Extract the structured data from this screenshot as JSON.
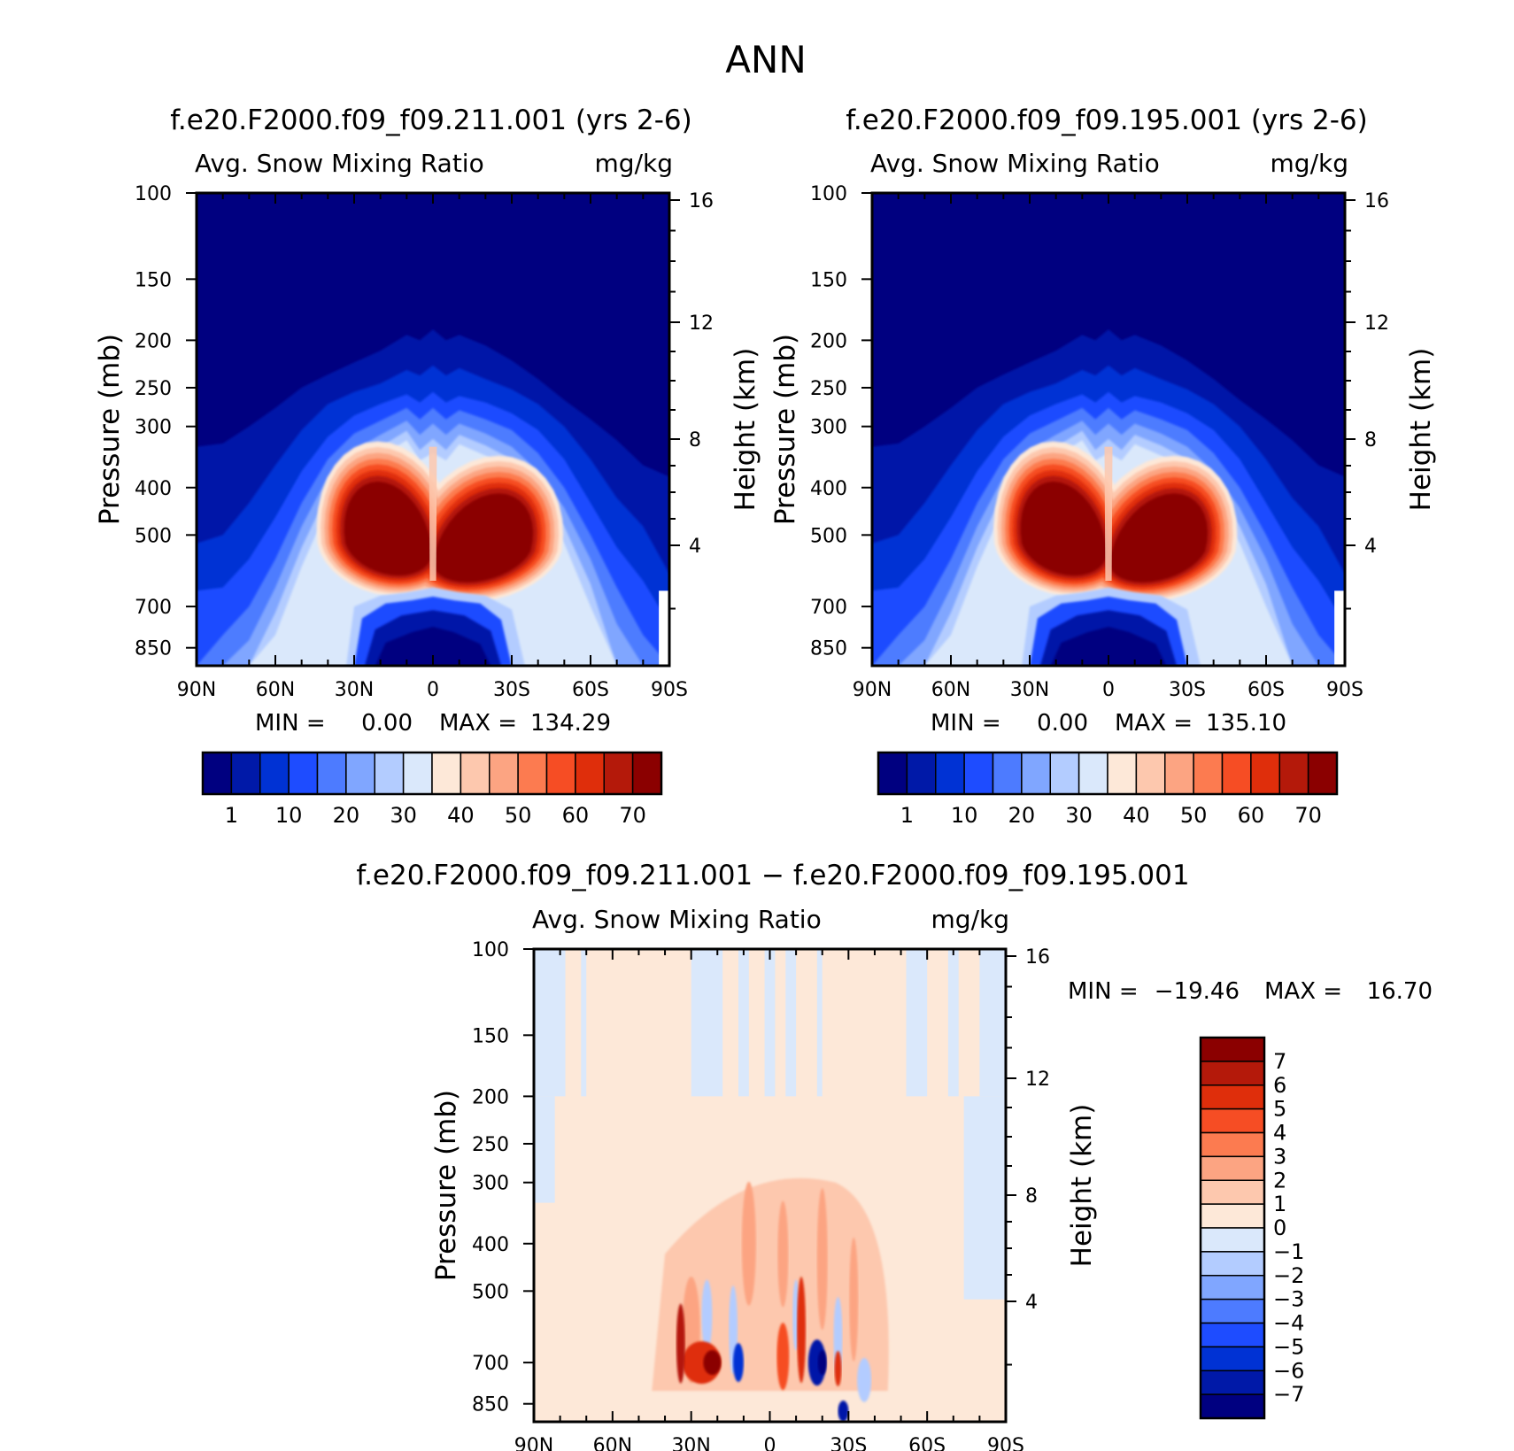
{
  "figure": {
    "title": "ANN",
    "colors": {
      "abs_levels": [
        "#000080",
        "#0019a8",
        "#0032d4",
        "#1e4cff",
        "#4d7bff",
        "#80a6ff",
        "#b3ccff",
        "#dae8fb",
        "#fde8d8",
        "#fdc8ae",
        "#fca482",
        "#fc7b50",
        "#f64d24",
        "#df2e0b",
        "#b4190a",
        "#8b0000"
      ],
      "diff_levels": [
        "#000080",
        "#0019a8",
        "#0032d4",
        "#1e4cff",
        "#4d7bff",
        "#80a6ff",
        "#b3ccff",
        "#dae8fb",
        "#fde8d8",
        "#fdc8ae",
        "#fca482",
        "#fc7b50",
        "#f64d24",
        "#df2e0b",
        "#b4190a",
        "#8b0000"
      ]
    }
  },
  "chart_data": [
    {
      "type": "heatmap",
      "case_title": "f.e20.F2000.f09_f09.211.001 (yrs 2-6)",
      "variable_label": "Avg. Snow Mixing Ratio",
      "units": "mg/kg",
      "xlabel": "",
      "ylabel": "Pressure (mb)",
      "ylabel_right": "Height (km)",
      "x_ticks": [
        "90N",
        "60N",
        "30N",
        "0",
        "30S",
        "60S",
        "90S"
      ],
      "y_ticks": [
        "100",
        "150",
        "200",
        "250",
        "300",
        "400",
        "500",
        "700",
        "850"
      ],
      "y_right_ticks": [
        "16",
        "12",
        "8",
        "4"
      ],
      "ylim_mb": [
        100,
        925
      ],
      "log_pressure_axis": true,
      "stats": {
        "min_label": "MIN =",
        "min": "0.00",
        "max_label": "MAX =",
        "max": "134.29"
      },
      "colorbar": {
        "orientation": "horizontal",
        "labels": [
          "1",
          "10",
          "20",
          "30",
          "40",
          "50",
          "60",
          "70"
        ]
      },
      "features": {
        "core_max_mg_per_kg": 134.29,
        "lobe_nh_center": [
          "10N",
          500
        ],
        "lobe_sh_center": [
          "15S",
          520
        ],
        "lobe_sh_low_center": [
          "35S",
          620
        ]
      }
    },
    {
      "type": "heatmap",
      "case_title": "f.e20.F2000.f09_f09.195.001 (yrs 2-6)",
      "variable_label": "Avg. Snow Mixing Ratio",
      "units": "mg/kg",
      "xlabel": "",
      "ylabel": "Pressure (mb)",
      "ylabel_right": "Height (km)",
      "x_ticks": [
        "90N",
        "60N",
        "30N",
        "0",
        "30S",
        "60S",
        "90S"
      ],
      "y_ticks": [
        "100",
        "150",
        "200",
        "250",
        "300",
        "400",
        "500",
        "700",
        "850"
      ],
      "y_right_ticks": [
        "16",
        "12",
        "8",
        "4"
      ],
      "ylim_mb": [
        100,
        925
      ],
      "log_pressure_axis": true,
      "stats": {
        "min_label": "MIN =",
        "min": "0.00",
        "max_label": "MAX =",
        "max": "135.10"
      },
      "colorbar": {
        "orientation": "horizontal",
        "labels": [
          "1",
          "10",
          "20",
          "30",
          "40",
          "50",
          "60",
          "70"
        ]
      },
      "features": {
        "core_max_mg_per_kg": 135.1,
        "lobe_nh_center": [
          "10N",
          500
        ],
        "lobe_sh_center": [
          "15S",
          520
        ],
        "lobe_sh_low_center": [
          "35S",
          620
        ]
      }
    },
    {
      "type": "heatmap",
      "case_title": "f.e20.F2000.f09_f09.211.001 − f.e20.F2000.f09_f09.195.001",
      "variable_label": "Avg. Snow Mixing Ratio",
      "units": "mg/kg",
      "xlabel": "",
      "ylabel": "Pressure (mb)",
      "ylabel_right": "Height (km)",
      "x_ticks": [
        "90N",
        "60N",
        "30N",
        "0",
        "30S",
        "60S",
        "90S"
      ],
      "y_ticks": [
        "100",
        "150",
        "200",
        "250",
        "300",
        "400",
        "500",
        "700",
        "850"
      ],
      "y_right_ticks": [
        "16",
        "12",
        "8",
        "4"
      ],
      "ylim_mb": [
        100,
        925
      ],
      "log_pressure_axis": true,
      "stats": {
        "min_label": "MIN =",
        "min": "−19.46",
        "max_label": "MAX =",
        "max": "16.70"
      },
      "colorbar": {
        "orientation": "vertical",
        "labels": [
          "7",
          "6",
          "5",
          "4",
          "3",
          "2",
          "1",
          "0",
          "−1",
          "−2",
          "−3",
          "−4",
          "−5",
          "−6",
          "−7"
        ]
      },
      "features": {
        "positive_max_near": [
          "25N",
          700
        ],
        "negative_min_near": [
          "18S",
          700
        ]
      }
    }
  ]
}
